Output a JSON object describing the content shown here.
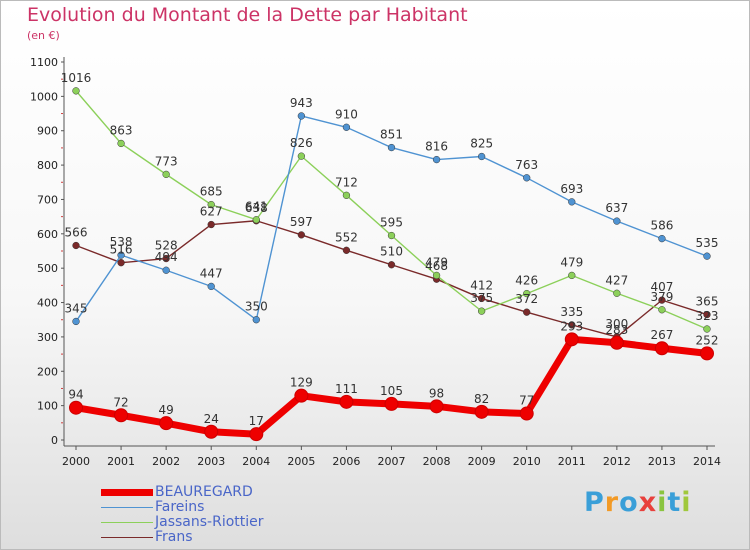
{
  "title": "Evolution du Montant de la Dette par Habitant",
  "subtitle": "(en €)",
  "logo": {
    "text": "Proxiti",
    "colors": [
      "#3a9fd8",
      "#f29a26",
      "#3a9fd8",
      "#e8403c",
      "#8ac43f",
      "#3a9fd8",
      "#a0c83c"
    ]
  },
  "chart_data": {
    "type": "line",
    "title": "Evolution du Montant de la Dette par Habitant",
    "subtitle": "(en €)",
    "x": [
      "2000",
      "2001",
      "2002",
      "2003",
      "2004",
      "2005",
      "2006",
      "2007",
      "2008",
      "2009",
      "2010",
      "2011",
      "2012",
      "2013",
      "2014"
    ],
    "ylim": [
      0,
      1100
    ],
    "yticks": [
      0,
      100,
      200,
      300,
      400,
      500,
      600,
      700,
      800,
      900,
      1000,
      1100
    ],
    "grid": false,
    "legend_position": "bottom-left",
    "series": [
      {
        "name": "BEAUREGARD",
        "color": "#ee0000",
        "values": [
          94,
          72,
          49,
          24,
          17,
          129,
          111,
          105,
          98,
          82,
          77,
          293,
          283,
          267,
          252
        ],
        "labels": [
          "94",
          "72",
          "49",
          "24",
          "17",
          "129",
          "111",
          "105",
          "98",
          "82",
          "77",
          "293",
          "283",
          "267",
          "252"
        ]
      },
      {
        "name": "Fareins",
        "color": "#4f93d2",
        "values": [
          345,
          538,
          494,
          447,
          350,
          943,
          910,
          851,
          816,
          825,
          763,
          693,
          637,
          586,
          535
        ],
        "labels": [
          "345",
          "538",
          "494",
          "447",
          "350",
          "943",
          "910",
          "851",
          "816",
          "825",
          "763",
          "693",
          "637",
          "586",
          "535"
        ]
      },
      {
        "name": "Jassans-Riottier",
        "color": "#8cd05a",
        "values": [
          1016,
          863,
          773,
          685,
          641,
          826,
          712,
          595,
          479,
          375,
          426,
          479,
          427,
          379,
          323
        ],
        "labels": [
          "1016",
          "863",
          "773",
          "685",
          "641",
          "826",
          "712",
          "595",
          "479",
          "375",
          "426",
          "479",
          "427",
          "379",
          "323"
        ]
      },
      {
        "name": "Frans",
        "color": "#7a2a2a",
        "values": [
          566,
          516,
          528,
          627,
          638,
          597,
          552,
          510,
          468,
          412,
          372,
          335,
          300,
          407,
          365
        ],
        "labels": [
          "566",
          "516",
          "528",
          "627",
          "638",
          "597",
          "552",
          "510",
          "468",
          "412",
          "372",
          "335",
          "300",
          "407",
          "365"
        ]
      }
    ]
  }
}
